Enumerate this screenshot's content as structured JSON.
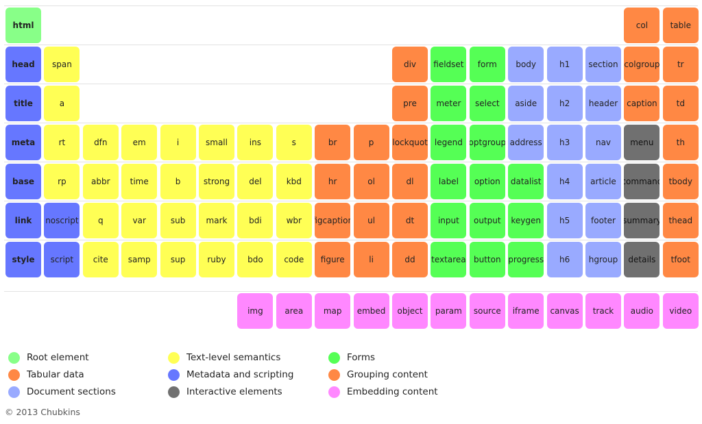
{
  "categories": {
    "root": {
      "label": "Root element",
      "color": "#88ff88"
    },
    "text": {
      "label": "Text-level semantics",
      "color": "#ffff55"
    },
    "forms": {
      "label": "Forms",
      "color": "#55ff55"
    },
    "tabular": {
      "label": "Tabular data",
      "color": "#ff8844"
    },
    "metadata": {
      "label": "Metadata and scripting",
      "color": "#6677ff"
    },
    "grouping": {
      "label": "Grouping content",
      "color": "#ff8844"
    },
    "sections": {
      "label": "Document sections",
      "color": "#99aaff"
    },
    "interactive": {
      "label": "Interactive elements",
      "color": "#707070"
    },
    "embedding": {
      "label": "Embedding content",
      "color": "#ff88ff"
    }
  },
  "legend_order": [
    "root",
    "tabular",
    "sections",
    "text",
    "metadata",
    "interactive",
    "forms",
    "grouping",
    "embedding"
  ],
  "rows": [
    [
      [
        "html",
        "root"
      ],
      null,
      null,
      null,
      null,
      null,
      null,
      null,
      null,
      null,
      null,
      null,
      null,
      null,
      null,
      null,
      [
        "col",
        "tabular"
      ],
      [
        "table",
        "tabular"
      ]
    ],
    [
      [
        "head",
        "metadata"
      ],
      [
        "span",
        "text"
      ],
      null,
      null,
      null,
      null,
      null,
      null,
      null,
      null,
      [
        "div",
        "grouping"
      ],
      [
        "fieldset",
        "forms"
      ],
      [
        "form",
        "forms"
      ],
      [
        "body",
        "sections"
      ],
      [
        "h1",
        "sections"
      ],
      [
        "section",
        "sections"
      ],
      [
        "colgroup",
        "tabular"
      ],
      [
        "tr",
        "tabular"
      ]
    ],
    [
      [
        "title",
        "metadata"
      ],
      [
        "a",
        "text"
      ],
      null,
      null,
      null,
      null,
      null,
      null,
      null,
      null,
      [
        "pre",
        "grouping"
      ],
      [
        "meter",
        "forms"
      ],
      [
        "select",
        "forms"
      ],
      [
        "aside",
        "sections"
      ],
      [
        "h2",
        "sections"
      ],
      [
        "header",
        "sections"
      ],
      [
        "caption",
        "tabular"
      ],
      [
        "td",
        "tabular"
      ]
    ],
    [
      [
        "meta",
        "metadata"
      ],
      [
        "rt",
        "text"
      ],
      [
        "dfn",
        "text"
      ],
      [
        "em",
        "text"
      ],
      [
        "i",
        "text"
      ],
      [
        "small",
        "text"
      ],
      [
        "ins",
        "text"
      ],
      [
        "s",
        "text"
      ],
      [
        "br",
        "grouping"
      ],
      [
        "p",
        "grouping"
      ],
      [
        "blockquote",
        "grouping"
      ],
      [
        "legend",
        "forms"
      ],
      [
        "optgroup",
        "forms"
      ],
      [
        "address",
        "sections"
      ],
      [
        "h3",
        "sections"
      ],
      [
        "nav",
        "sections"
      ],
      [
        "menu",
        "interactive"
      ],
      [
        "th",
        "tabular"
      ]
    ],
    [
      [
        "base",
        "metadata"
      ],
      [
        "rp",
        "text"
      ],
      [
        "abbr",
        "text"
      ],
      [
        "time",
        "text"
      ],
      [
        "b",
        "text"
      ],
      [
        "strong",
        "text"
      ],
      [
        "del",
        "text"
      ],
      [
        "kbd",
        "text"
      ],
      [
        "hr",
        "grouping"
      ],
      [
        "ol",
        "grouping"
      ],
      [
        "dl",
        "grouping"
      ],
      [
        "label",
        "forms"
      ],
      [
        "option",
        "forms"
      ],
      [
        "datalist",
        "forms"
      ],
      [
        "h4",
        "sections"
      ],
      [
        "article",
        "sections"
      ],
      [
        "command",
        "interactive"
      ],
      [
        "tbody",
        "tabular"
      ]
    ],
    [
      [
        "link",
        "metadata"
      ],
      [
        "noscript",
        "metadata"
      ],
      [
        "q",
        "text"
      ],
      [
        "var",
        "text"
      ],
      [
        "sub",
        "text"
      ],
      [
        "mark",
        "text"
      ],
      [
        "bdi",
        "text"
      ],
      [
        "wbr",
        "text"
      ],
      [
        "figcaption",
        "grouping"
      ],
      [
        "ul",
        "grouping"
      ],
      [
        "dt",
        "grouping"
      ],
      [
        "input",
        "forms"
      ],
      [
        "output",
        "forms"
      ],
      [
        "keygen",
        "forms"
      ],
      [
        "h5",
        "sections"
      ],
      [
        "footer",
        "sections"
      ],
      [
        "summary",
        "interactive"
      ],
      [
        "thead",
        "tabular"
      ]
    ],
    [
      [
        "style",
        "metadata"
      ],
      [
        "script",
        "metadata"
      ],
      [
        "cite",
        "text"
      ],
      [
        "samp",
        "text"
      ],
      [
        "sup",
        "text"
      ],
      [
        "ruby",
        "text"
      ],
      [
        "bdo",
        "text"
      ],
      [
        "code",
        "text"
      ],
      [
        "figure",
        "grouping"
      ],
      [
        "li",
        "grouping"
      ],
      [
        "dd",
        "grouping"
      ],
      [
        "textarea",
        "forms"
      ],
      [
        "button",
        "forms"
      ],
      [
        "progress",
        "forms"
      ],
      [
        "h6",
        "sections"
      ],
      [
        "hgroup",
        "sections"
      ],
      [
        "details",
        "interactive"
      ],
      [
        "tfoot",
        "tabular"
      ]
    ]
  ],
  "embedding_row": [
    null,
    null,
    null,
    null,
    null,
    null,
    [
      "img",
      "embedding"
    ],
    [
      "area",
      "embedding"
    ],
    [
      "map",
      "embedding"
    ],
    [
      "embed",
      "embedding"
    ],
    [
      "object",
      "embedding"
    ],
    [
      "param",
      "embedding"
    ],
    [
      "source",
      "embedding"
    ],
    [
      "iframe",
      "embedding"
    ],
    [
      "canvas",
      "embedding"
    ],
    [
      "track",
      "embedding"
    ],
    [
      "audio",
      "embedding"
    ],
    [
      "video",
      "embedding"
    ]
  ],
  "footer": "© 2013 Chubkins"
}
